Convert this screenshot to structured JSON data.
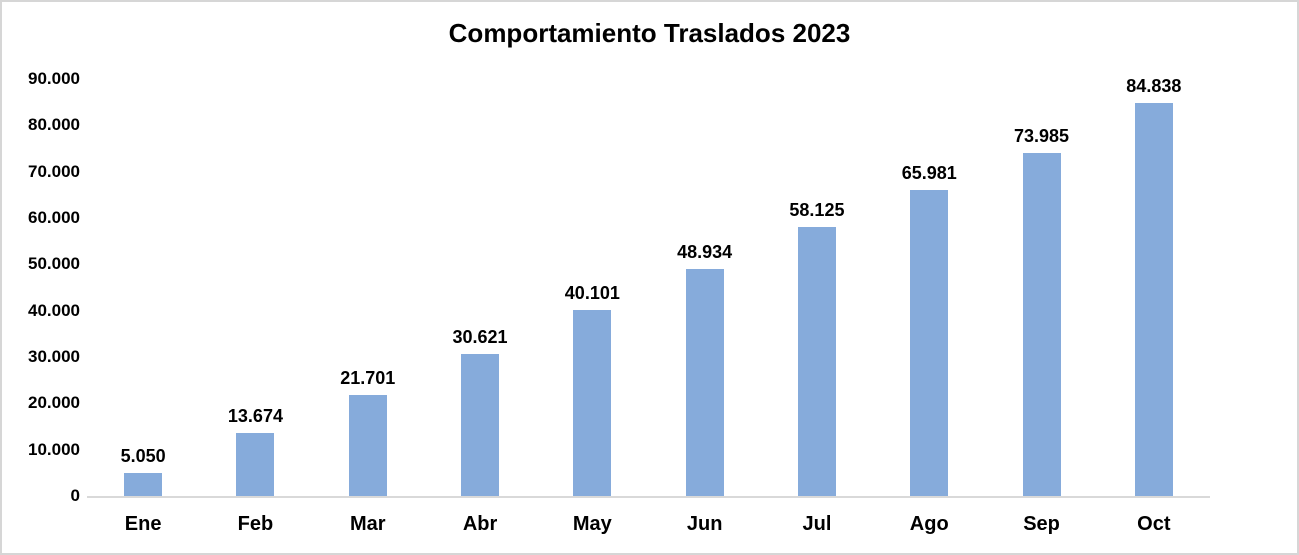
{
  "title": "Comportamiento Traslados 2023",
  "colors": {
    "bar_fill": "#86abdb",
    "axis_line": "#d9d9d9",
    "chart_border": "#d6d6d6",
    "text": "#000000",
    "background": "#ffffff"
  },
  "chart_data": {
    "type": "bar",
    "title": "Comportamiento Traslados 2023",
    "categories": [
      "Ene",
      "Feb",
      "Mar",
      "Abr",
      "May",
      "Jun",
      "Jul",
      "Ago",
      "Sep",
      "Oct"
    ],
    "values": [
      5050,
      13674,
      21701,
      30621,
      40101,
      48934,
      58125,
      65981,
      73985,
      84838
    ],
    "data_labels": [
      "5.050",
      "13.674",
      "21.701",
      "30.621",
      "40.101",
      "48.934",
      "58.125",
      "65.981",
      "73.985",
      "84.838"
    ],
    "ylim": [
      0,
      90000
    ],
    "y_ticks": [
      {
        "value": 90000,
        "label": "90.000"
      },
      {
        "value": 80000,
        "label": "80.000"
      },
      {
        "value": 70000,
        "label": "70.000"
      },
      {
        "value": 60000,
        "label": "60.000"
      },
      {
        "value": 50000,
        "label": "50.000"
      },
      {
        "value": 40000,
        "label": "40.000"
      },
      {
        "value": 30000,
        "label": "30.000"
      },
      {
        "value": 20000,
        "label": "20.000"
      },
      {
        "value": 10000,
        "label": "10.000"
      },
      {
        "value": 0,
        "label": "0"
      }
    ],
    "xlabel": "",
    "ylabel": "",
    "grid": false,
    "legend": null,
    "data_labels_shown": true
  }
}
